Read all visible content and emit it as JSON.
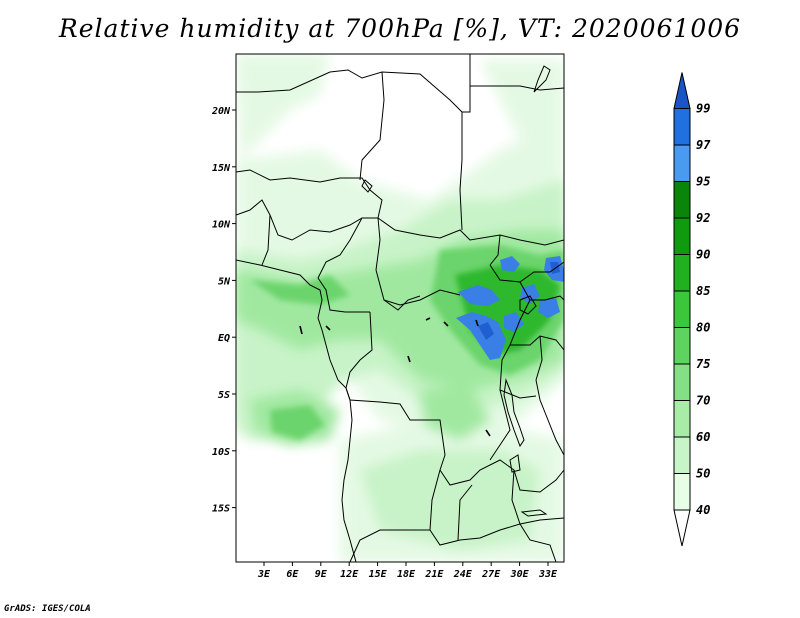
{
  "title": "Relative humidity at 700hPa [%], VT: 2020061006",
  "credit": "GrADS: IGES/COLA",
  "map": {
    "lat_labels": [
      "20N",
      "15N",
      "10N",
      "5N",
      "EQ",
      "5S",
      "10S",
      "15S"
    ],
    "lon_labels": [
      "3E",
      "6E",
      "9E",
      "12E",
      "15E",
      "18E",
      "21E",
      "24E",
      "27E",
      "30E",
      "33E"
    ]
  },
  "colorbar": {
    "labels": [
      "40",
      "50",
      "60",
      "70",
      "75",
      "80",
      "85",
      "90",
      "92",
      "95",
      "97",
      "99"
    ],
    "colors": [
      "#ffffff",
      "#e6ffe6",
      "#c8f5c8",
      "#a8eca8",
      "#85e085",
      "#5fd35f",
      "#3cc63c",
      "#20b020",
      "#109a10",
      "#0a850a",
      "#4a9aef",
      "#2070e0",
      "#1a55c8"
    ]
  }
}
